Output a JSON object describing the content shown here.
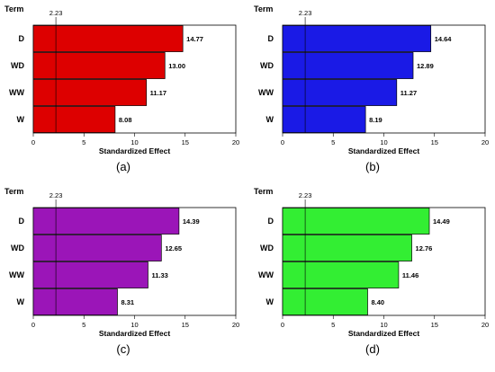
{
  "chart_data": [
    {
      "type": "bar",
      "orientation": "horizontal",
      "caption": "(a)",
      "categories": [
        "D",
        "WD",
        "WW",
        "W"
      ],
      "values": [
        14.77,
        13.0,
        11.17,
        8.08
      ],
      "value_labels": [
        "14.77",
        "13.00",
        "11.17",
        "8.08"
      ],
      "color": "#dd0000",
      "ylabel": "Term",
      "xlabel": "Standardized Effect",
      "xlim": [
        0,
        20
      ],
      "xticks": [
        "0",
        "5",
        "10",
        "15",
        "20"
      ],
      "reference_line": {
        "value": 2.23,
        "label": "2.23"
      }
    },
    {
      "type": "bar",
      "orientation": "horizontal",
      "caption": "(b)",
      "categories": [
        "D",
        "WD",
        "WW",
        "W"
      ],
      "values": [
        14.64,
        12.89,
        11.27,
        8.19
      ],
      "value_labels": [
        "14.64",
        "12.89",
        "11.27",
        "8.19"
      ],
      "color": "#1a1ae6",
      "ylabel": "Term",
      "xlabel": "Standardized Effect",
      "xlim": [
        0,
        20
      ],
      "xticks": [
        "0",
        "5",
        "10",
        "15",
        "20"
      ],
      "reference_line": {
        "value": 2.23,
        "label": "2.23"
      }
    },
    {
      "type": "bar",
      "orientation": "horizontal",
      "caption": "(c)",
      "categories": [
        "D",
        "WD",
        "WW",
        "W"
      ],
      "values": [
        14.39,
        12.65,
        11.33,
        8.31
      ],
      "value_labels": [
        "14.39",
        "12.65",
        "11.33",
        "8.31"
      ],
      "color": "#9b15b8",
      "ylabel": "Term",
      "xlabel": "Standardized Effect",
      "xlim": [
        0,
        20
      ],
      "xticks": [
        "0",
        "5",
        "10",
        "15",
        "20"
      ],
      "reference_line": {
        "value": 2.23,
        "label": "2.23"
      }
    },
    {
      "type": "bar",
      "orientation": "horizontal",
      "caption": "(d)",
      "categories": [
        "D",
        "WD",
        "WW",
        "W"
      ],
      "values": [
        14.49,
        12.76,
        11.46,
        8.4
      ],
      "value_labels": [
        "14.49",
        "12.76",
        "11.46",
        "8.40"
      ],
      "color": "#33ee33",
      "ylabel": "Term",
      "xlabel": "Standardized Effect",
      "xlim": [
        0,
        20
      ],
      "xticks": [
        "0",
        "5",
        "10",
        "15",
        "20"
      ],
      "reference_line": {
        "value": 2.23,
        "label": "2.23"
      }
    }
  ]
}
